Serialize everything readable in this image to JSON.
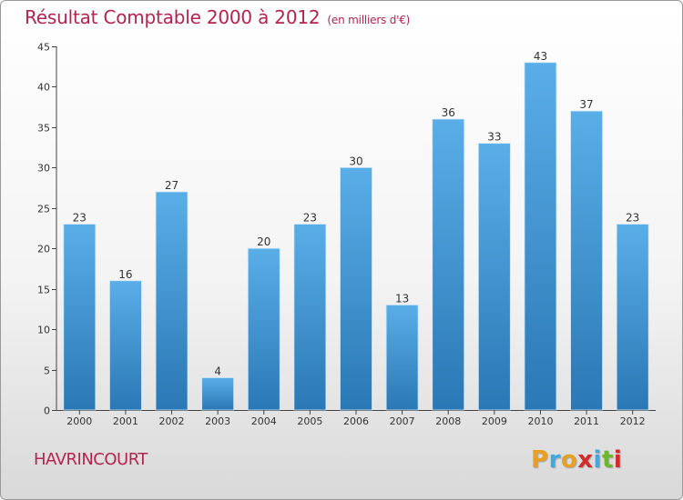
{
  "chart_data": {
    "type": "bar",
    "title": "Résultat Comptable 2000 à 2012",
    "subtitle": "(en milliers d'€)",
    "categories": [
      "2000",
      "2001",
      "2002",
      "2003",
      "2004",
      "2005",
      "2006",
      "2007",
      "2008",
      "2009",
      "2010",
      "2011",
      "2012"
    ],
    "values": [
      23,
      16,
      27,
      4,
      20,
      23,
      30,
      13,
      36,
      33,
      43,
      37,
      23
    ],
    "ylim": [
      0,
      45
    ],
    "yticks": [
      0,
      5,
      10,
      15,
      20,
      25,
      30,
      35,
      40,
      45
    ],
    "xlabel": "",
    "ylabel": "",
    "grid": false,
    "bar_color_top": "#5aaee8",
    "bar_color_bottom": "#2a78b5"
  },
  "location": "HAVRINCOURT",
  "logo": {
    "letters": [
      "P",
      "r",
      "o",
      "x",
      "i",
      "t",
      "i"
    ],
    "colors": [
      "#e8a020",
      "#3fa9e0",
      "#e8a020",
      "#d42a2a",
      "#3fa9e0",
      "#6bb82a",
      "#d42a2a"
    ]
  },
  "colors": {
    "title": "#b5234f",
    "axis": "#333333"
  }
}
